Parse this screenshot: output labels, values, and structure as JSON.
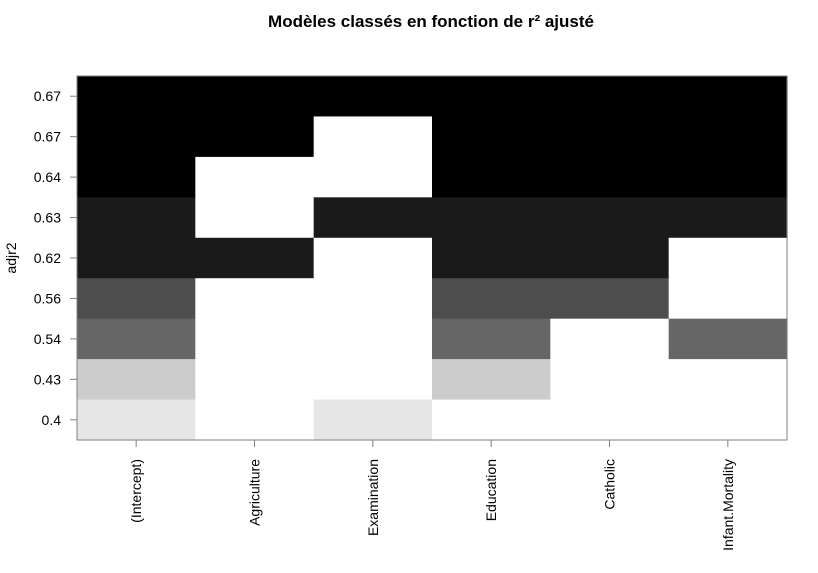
{
  "chart_data": {
    "type": "heatmap",
    "title": "Modèles classés en fonction de r² ajusté",
    "ylabel": "adjr2",
    "xlabel": "",
    "columns": [
      "(Intercept)",
      "Agriculture",
      "Examination",
      "Education",
      "Catholic",
      "Infant.Mortality"
    ],
    "rows_top_to_bottom": [
      "0.67",
      "0.67",
      "0.64",
      "0.63",
      "0.62",
      "0.56",
      "0.54",
      "0.43",
      "0.4"
    ],
    "row_colors": [
      "#000000",
      "#000000",
      "#000000",
      "#1a1a1a",
      "#1a1a1a",
      "#4d4d4d",
      "#666666",
      "#cccccc",
      "#e6e6e6"
    ],
    "included": [
      [
        1,
        1,
        1,
        1,
        1,
        1
      ],
      [
        1,
        1,
        0,
        1,
        1,
        1
      ],
      [
        1,
        0,
        0,
        1,
        1,
        1
      ],
      [
        1,
        0,
        1,
        1,
        1,
        1
      ],
      [
        1,
        1,
        0,
        1,
        1,
        0
      ],
      [
        1,
        0,
        0,
        1,
        1,
        0
      ],
      [
        1,
        0,
        0,
        1,
        0,
        1
      ],
      [
        1,
        0,
        0,
        1,
        0,
        0
      ],
      [
        1,
        0,
        1,
        0,
        0,
        0
      ]
    ],
    "empty_color": "#ffffff",
    "frame_color": "#808080"
  }
}
